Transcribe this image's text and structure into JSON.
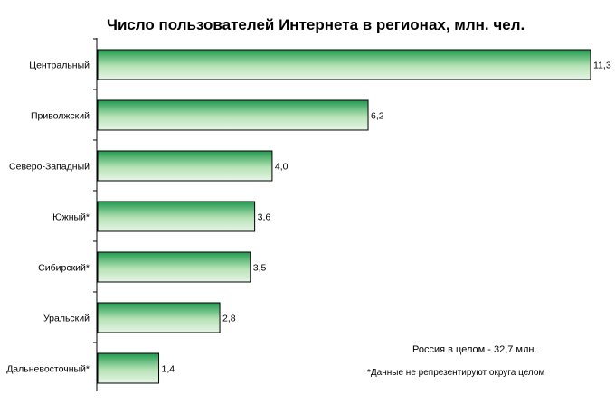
{
  "chart_data": {
    "type": "bar",
    "orientation": "horizontal",
    "title": "Число пользователей Интернета  в регионах, млн. чел.",
    "categories": [
      "Центральный",
      "Приволжский",
      "Северо-Западный",
      "Южный*",
      "Сибирский*",
      "Уральский",
      "Дальневосточный*"
    ],
    "values": [
      11.3,
      6.2,
      4.0,
      3.6,
      3.5,
      2.8,
      1.4
    ],
    "data_labels": [
      "11,3",
      "6,2",
      "4,0",
      "3,6",
      "3,5",
      "2,8",
      "1,4"
    ],
    "xlim": [
      0,
      11.3
    ],
    "grid": false,
    "bar_fill": [
      "#1f9a4e",
      "#e6f5e6"
    ]
  },
  "notes": {
    "total": "Россия в целом - 32,7 млн.",
    "footnote": "*Данные не репрезентируют округа целом"
  }
}
